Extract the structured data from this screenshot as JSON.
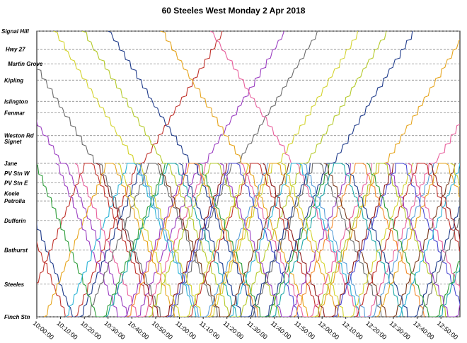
{
  "chart_data": {
    "type": "line",
    "title": "60  Steeles  West Monday  2 Apr 2018",
    "xlabel": "",
    "ylabel": "",
    "grid": true,
    "legend": "none",
    "y_categories": [
      {
        "label": "Signal Hill",
        "pos": 0.0
      },
      {
        "label": "Hwy 27",
        "pos": 1.1
      },
      {
        "label": "Martin Grove",
        "pos": 2.0
      },
      {
        "label": "Kipling",
        "pos": 3.0
      },
      {
        "label": "Islington",
        "pos": 4.3
      },
      {
        "label": "Fenmar",
        "pos": 5.0
      },
      {
        "label": "Weston Rd",
        "pos": 6.4
      },
      {
        "label": "Signet",
        "pos": 6.75
      },
      {
        "label": "Jane",
        "pos": 8.1
      },
      {
        "label": "PV Stn W",
        "pos": 8.7
      },
      {
        "label": "PV Stn E",
        "pos": 9.3
      },
      {
        "label": "Keele",
        "pos": 9.95
      },
      {
        "label": "Petrolia",
        "pos": 10.4
      },
      {
        "label": "Dufferin",
        "pos": 11.6
      },
      {
        "label": "Bathurst",
        "pos": 13.4
      },
      {
        "label": "Steeles",
        "pos": 15.5
      },
      {
        "label": "Finch Stn",
        "pos": 17.5
      }
    ],
    "x_ticks": [
      "10:00:00",
      "10:10:00",
      "10:20:00",
      "10:30:00",
      "10:40:00",
      "10:50:00",
      "11:00:00",
      "11:10:00",
      "11:20:00",
      "11:30:00",
      "11:40:00",
      "11:50:00",
      "12:00:00",
      "12:10:00",
      "12:20:00",
      "12:30:00",
      "12:40:00",
      "12:50:00"
    ],
    "x_range_minutes": [
      0,
      178
    ],
    "long_route_trips_start_minutes": [
      -50,
      -24,
      -10,
      7,
      19,
      30,
      52,
      73
    ],
    "short_route_trips_start_minutes": [
      -11,
      -6,
      -1,
      3,
      8,
      12,
      16,
      21,
      25,
      29,
      34,
      38,
      42,
      47,
      51,
      55,
      60,
      64,
      68,
      72,
      77,
      81,
      86,
      90,
      95,
      99,
      103,
      108,
      112,
      117,
      121,
      125,
      130,
      134,
      139,
      143,
      147,
      152,
      156,
      161,
      165,
      169,
      174
    ],
    "colors": [
      "#1f3b8a",
      "#c0322b",
      "#2e9e3a",
      "#e6a51e",
      "#9b3ec1",
      "#2bb3d6",
      "#e85f9c",
      "#6b6b6b",
      "#8b1a1a",
      "#1aa6a6",
      "#d4d431",
      "#f28a2b",
      "#5a9fd8",
      "#b5ca2c",
      "#7a3b1e",
      "#4b4bd1"
    ]
  }
}
